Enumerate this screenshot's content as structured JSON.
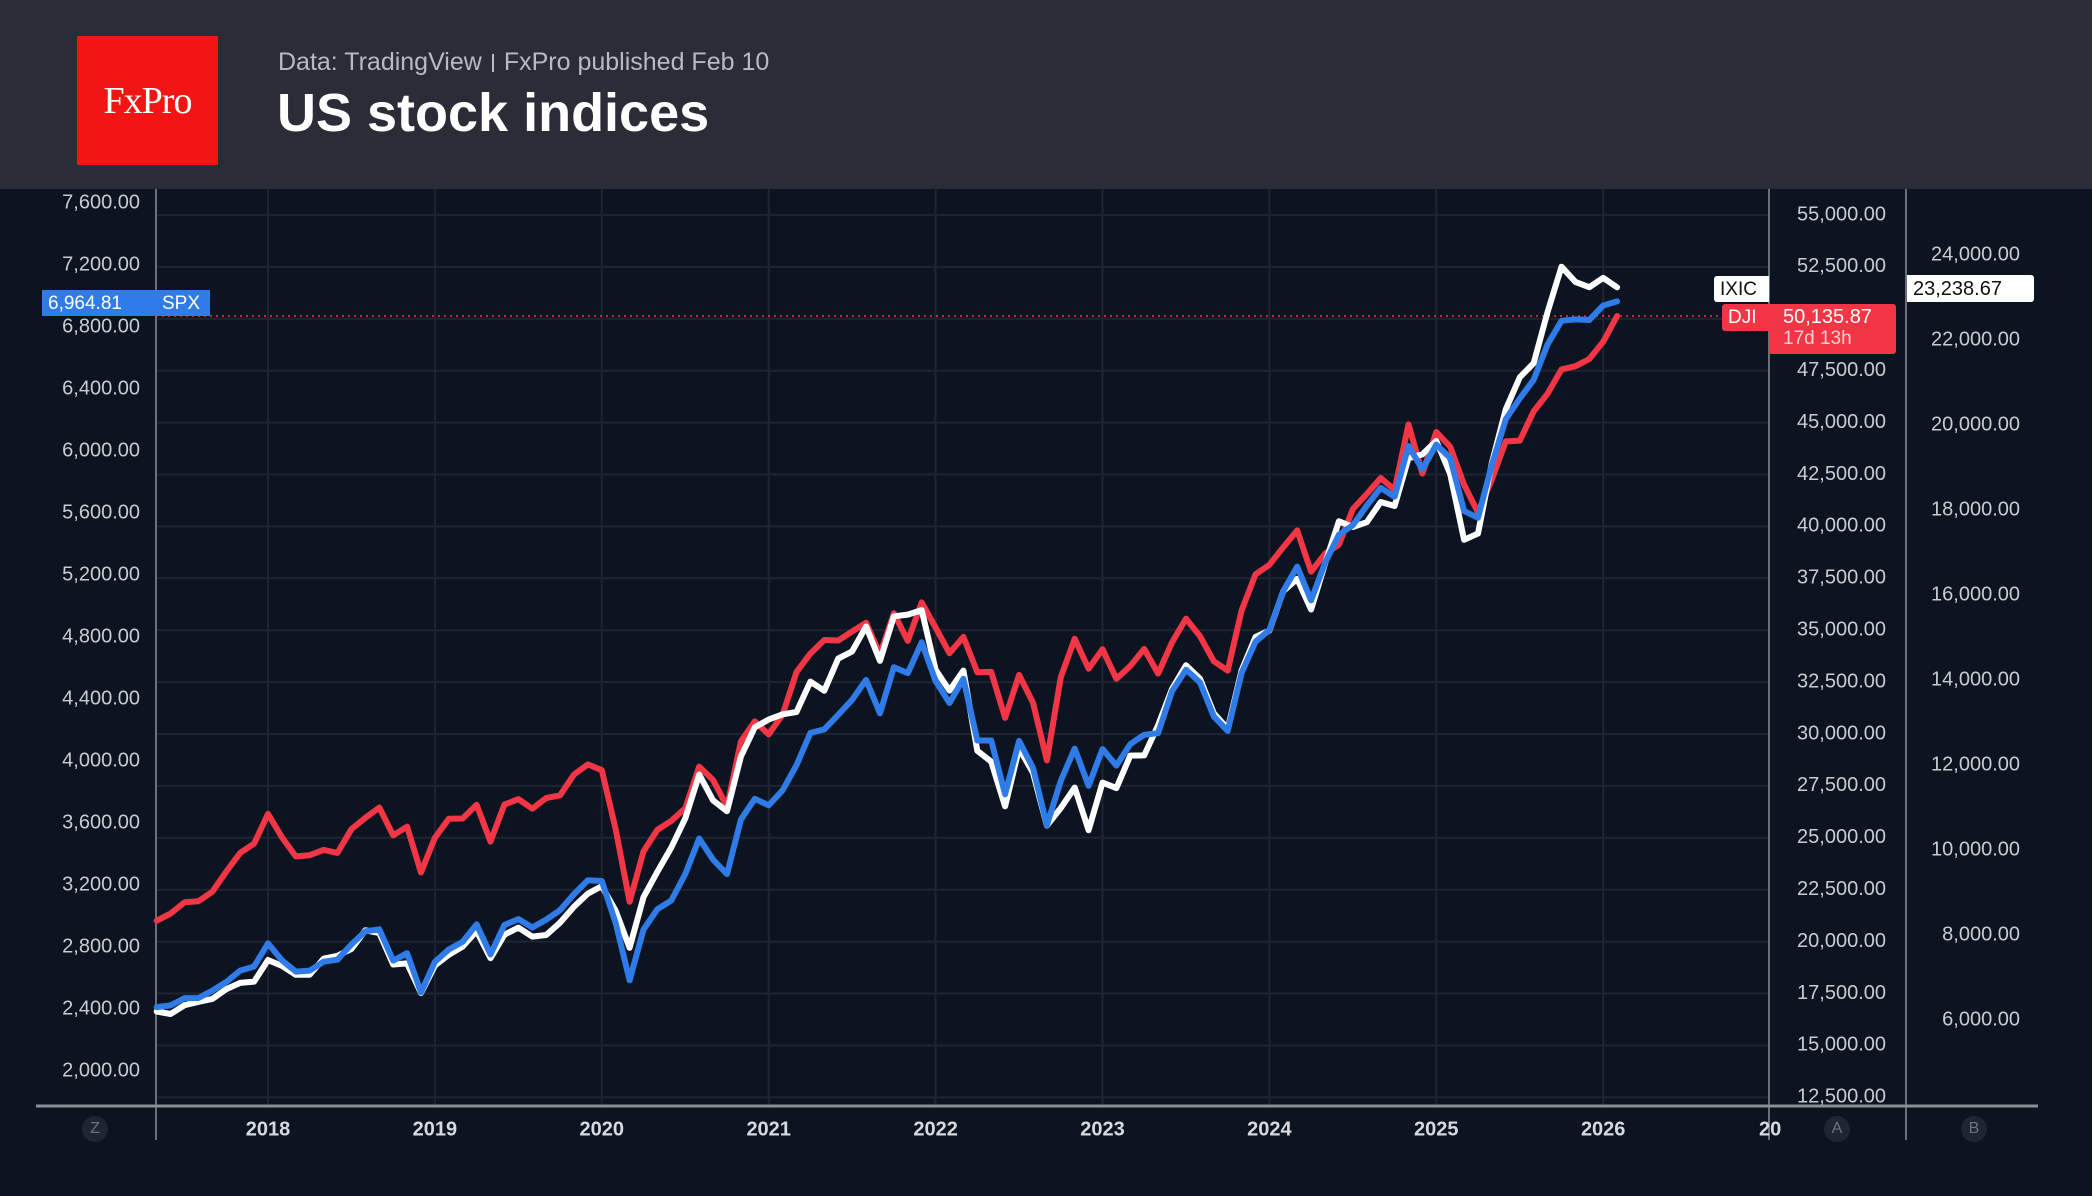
{
  "header": {
    "logo_text": "FxPro",
    "source": "Data: TradingView",
    "published": "FxPro published Feb 10",
    "title": "US stock indices"
  },
  "colors": {
    "SPX": "#2f7ce8",
    "DJI": "#f23645",
    "IXIC": "#ffffff",
    "header_bg": "#2a2d38",
    "chart_bg": "#0d1421"
  },
  "labels": {
    "spx_value": "6,964.81",
    "spx_name": "SPX",
    "ixic_name": "IXIC",
    "ixic_value": "23,238.67",
    "dji_name": "DJI",
    "dji_value": "50,135.87",
    "dji_countdown": "17d 13h",
    "scale_left": "Z",
    "scale_a": "A",
    "scale_b": "B"
  },
  "chart_data": {
    "type": "line",
    "title": "US stock indices",
    "x_start": "2017-05",
    "x_end": "2026-02",
    "x_ticks": [
      "2018",
      "2019",
      "2020",
      "2021",
      "2022",
      "2023",
      "2024",
      "2025",
      "2026",
      "20"
    ],
    "grid": true,
    "axes": {
      "SPX": {
        "position": "left",
        "ylim": [
          1900,
          7700
        ],
        "ticks": [
          "7,600.00",
          "7,200.00",
          "6,800.00",
          "6,400.00",
          "6,000.00",
          "5,600.00",
          "5,200.00",
          "4,800.00",
          "4,400.00",
          "4,000.00",
          "3,600.00",
          "3,200.00",
          "2,800.00",
          "2,400.00",
          "2,000.00"
        ]
      },
      "DJI": {
        "position": "right-inner",
        "ylim": [
          12000,
          56000
        ],
        "ticks": [
          "55,000.00",
          "52,500.00",
          "47,500.00",
          "45,000.00",
          "42,500.00",
          "40,000.00",
          "37,500.00",
          "35,000.00",
          "32,500.00",
          "30,000.00",
          "27,500.00",
          "25,000.00",
          "22,500.00",
          "20,000.00",
          "17,500.00",
          "15,000.00",
          "12,500.00"
        ]
      },
      "IXIC": {
        "position": "right-outer",
        "ylim": [
          5000,
          25000
        ],
        "ticks": [
          "24,000.00",
          "22,000.00",
          "20,000.00",
          "18,000.00",
          "16,000.00",
          "14,000.00",
          "12,000.00",
          "10,000.00",
          "8,000.00",
          "6,000.00"
        ]
      }
    },
    "series": [
      {
        "name": "DJI",
        "axis": "DJI",
        "values": [
          21009,
          21350,
          21891,
          21948,
          22405,
          23377,
          24272,
          24719,
          26149,
          25029,
          24103,
          24163,
          24416,
          24271,
          25415,
          25965,
          26458,
          25116,
          25538,
          23327,
          24999,
          25916,
          25929,
          26593,
          24815,
          26600,
          26864,
          26403,
          26917,
          27046,
          28051,
          28538,
          28256,
          25409,
          21917,
          24346,
          25383,
          25813,
          26428,
          28430,
          27782,
          26502,
          29639,
          30606,
          29983,
          30932,
          32982,
          33875,
          34529,
          34503,
          34935,
          35361,
          33844,
          35820,
          34484,
          36338,
          35132,
          33893,
          34678,
          32977,
          32990,
          30775,
          32845,
          31510,
          28726,
          32733,
          34590,
          33147,
          34086,
          32657,
          33274,
          34098,
          32908,
          34408,
          35560,
          34722,
          33508,
          33053,
          35951,
          37690,
          38150,
          38996,
          39807,
          37816,
          38686,
          39119,
          40843,
          41563,
          42330,
          41763,
          44911,
          42544,
          44545,
          43841,
          42002,
          40669,
          42270,
          44095,
          44131,
          45545,
          46398,
          47563,
          47716,
          48063,
          48892,
          50136
        ]
      },
      {
        "name": "IXIC",
        "axis": "IXIC",
        "values": [
          6199,
          6140,
          6348,
          6429,
          6496,
          6728,
          6874,
          6903,
          7411,
          7273,
          7063,
          7066,
          7442,
          7510,
          7672,
          8110,
          8046,
          7306,
          7331,
          6635,
          7282,
          7533,
          7729,
          8095,
          7453,
          8006,
          8175,
          7963,
          7999,
          8292,
          8665,
          8973,
          9151,
          8567,
          7700,
          8890,
          9490,
          10059,
          10745,
          11775,
          11168,
          10912,
          12199,
          12888,
          13070,
          13192,
          13247,
          13962,
          13749,
          14504,
          14673,
          15259,
          14449,
          15498,
          15538,
          15645,
          14240,
          13751,
          14221,
          12335,
          12081,
          11029,
          12391,
          11816,
          10576,
          10988,
          11468,
          10466,
          11585,
          11456,
          12222,
          12227,
          12935,
          13788,
          14346,
          14035,
          13219,
          12851,
          14226,
          15011,
          15164,
          16092,
          16379,
          15658,
          16735,
          17733,
          17599,
          17714,
          18189,
          18095,
          19218,
          19311,
          19627,
          18847,
          17299,
          17446,
          19114,
          20370,
          21122,
          21456,
          22660,
          23725,
          23366,
          23242,
          23462,
          23239
        ]
      },
      {
        "name": "SPX",
        "axis": "SPX",
        "values": [
          2412,
          2423,
          2470,
          2471,
          2519,
          2575,
          2648,
          2674,
          2824,
          2714,
          2641,
          2648,
          2705,
          2718,
          2816,
          2901,
          2914,
          2712,
          2760,
          2507,
          2704,
          2784,
          2834,
          2946,
          2752,
          2942,
          2980,
          2926,
          2977,
          3038,
          3141,
          3231,
          3226,
          2954,
          2585,
          2912,
          3044,
          3100,
          3271,
          3500,
          3363,
          3270,
          3622,
          3756,
          3714,
          3811,
          3973,
          4181,
          4204,
          4298,
          4395,
          4523,
          4308,
          4605,
          4567,
          4766,
          4516,
          4374,
          4530,
          4132,
          4132,
          3785,
          4130,
          3955,
          3586,
          3872,
          4080,
          3840,
          4077,
          3970,
          4109,
          4169,
          4180,
          4450,
          4589,
          4508,
          4288,
          4194,
          4568,
          4770,
          4846,
          5096,
          5254,
          5036,
          5278,
          5460,
          5522,
          5648,
          5762,
          5705,
          6032,
          5882,
          6041,
          5955,
          5612,
          5569,
          5912,
          6205,
          6339,
          6460,
          6688,
          6840,
          6849,
          6845,
          6939,
          6965
        ]
      }
    ]
  }
}
